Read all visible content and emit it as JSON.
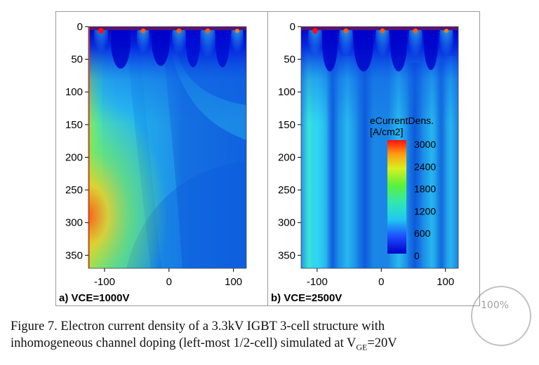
{
  "figure": {
    "caption_line1": "Figure 7.   Electron current density of a 3.3kV IGBT 3-cell structure with",
    "caption_line2": "inhomogeneous channel doping (left-most 1/2-cell) simulated at V",
    "caption_sub": "GE",
    "caption_tail": "=20V",
    "watermark_text": "100%"
  },
  "chart_data": [
    {
      "type": "heatmap",
      "panel_label": "a) VCE=1000V",
      "x_ticks": [
        -100,
        0,
        100
      ],
      "y_ticks": [
        0,
        50,
        100,
        150,
        200,
        250,
        300,
        350
      ],
      "xlim": [
        -125,
        120
      ],
      "ylim": [
        0,
        370
      ],
      "y_inverted": true,
      "colors": {
        "low": "#0000d0",
        "mid": "#27d8f0",
        "high": "#ff1010"
      }
    },
    {
      "type": "heatmap",
      "panel_label": "b) VCE=2500V",
      "x_ticks": [
        -100,
        0,
        100
      ],
      "y_ticks": [
        0,
        50,
        100,
        150,
        200,
        250,
        300,
        350
      ],
      "xlim": [
        -125,
        120
      ],
      "ylim": [
        0,
        370
      ],
      "y_inverted": true,
      "legend": {
        "title_line1": "eCurrentDens.",
        "title_line2": "[A/cm2]",
        "ticks": [
          3000,
          2400,
          1800,
          1200,
          600,
          0
        ]
      }
    }
  ]
}
